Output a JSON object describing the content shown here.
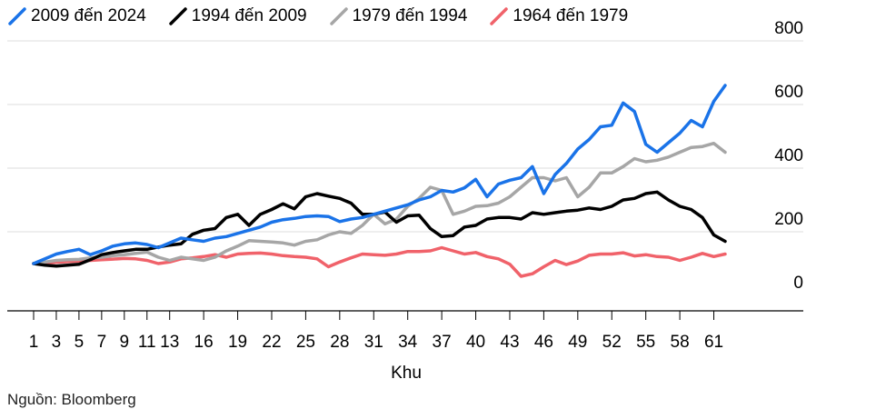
{
  "legend": [
    {
      "name": "2009 đến 2024",
      "color": "#1a73e8"
    },
    {
      "name": "1994 đến 2009",
      "color": "#000000"
    },
    {
      "name": "1979 đến 1994",
      "color": "#a6a6a6"
    },
    {
      "name": "1964 đến 1979",
      "color": "#f0626a"
    }
  ],
  "source": "Nguồn: Bloomberg",
  "chart_data": {
    "type": "line",
    "title": "",
    "xlabel": "Khu",
    "ylabel": "",
    "xlim": [
      1,
      62
    ],
    "ylim": [
      -50,
      800
    ],
    "yticks": [
      0,
      200,
      400,
      600,
      800
    ],
    "xticks": [
      1,
      3,
      5,
      7,
      9,
      11,
      13,
      16,
      19,
      22,
      25,
      28,
      31,
      34,
      37,
      40,
      43,
      46,
      49,
      52,
      55,
      58,
      61
    ],
    "grid": "horizontal",
    "y_axis_side": "right",
    "legend_position": "top-left",
    "series": [
      {
        "name": "1964 đến 1979",
        "color": "#f0626a",
        "values": [
          100,
          102,
          104,
          106,
          108,
          110,
          112,
          114,
          116,
          115,
          110,
          100,
          105,
          115,
          118,
          122,
          128,
          120,
          130,
          132,
          133,
          130,
          125,
          122,
          120,
          115,
          90,
          105,
          118,
          130,
          128,
          126,
          130,
          138,
          138,
          140,
          150,
          140,
          130,
          135,
          122,
          115,
          98,
          60,
          68,
          90,
          110,
          97,
          108,
          126,
          130,
          130,
          134,
          124,
          128,
          122,
          120,
          110,
          120,
          132,
          122,
          130
        ]
      },
      {
        "name": "1979 đến 1994",
        "color": "#a6a6a6",
        "values": [
          100,
          105,
          110,
          112,
          113,
          118,
          120,
          125,
          128,
          132,
          136,
          120,
          110,
          120,
          115,
          110,
          120,
          140,
          155,
          172,
          170,
          168,
          165,
          158,
          170,
          175,
          190,
          200,
          195,
          220,
          255,
          225,
          240,
          280,
          305,
          340,
          330,
          255,
          265,
          280,
          282,
          290,
          310,
          340,
          370,
          370,
          360,
          370,
          310,
          340,
          385,
          385,
          405,
          430,
          420,
          425,
          435,
          450,
          465,
          468,
          478,
          450
        ]
      },
      {
        "name": "1994 đến 2009",
        "color": "#000000",
        "values": [
          100,
          95,
          92,
          95,
          98,
          112,
          128,
          135,
          140,
          145,
          145,
          152,
          158,
          162,
          192,
          205,
          210,
          245,
          255,
          220,
          255,
          270,
          288,
          272,
          310,
          320,
          312,
          305,
          290,
          255,
          255,
          262,
          230,
          250,
          252,
          210,
          185,
          188,
          215,
          220,
          240,
          245,
          245,
          240,
          260,
          255,
          260,
          265,
          268,
          275,
          270,
          280,
          300,
          305,
          320,
          325,
          300,
          280,
          270,
          245,
          190,
          170
        ]
      },
      {
        "name": "2009 đến 2024",
        "color": "#1a73e8",
        "values": [
          100,
          115,
          130,
          138,
          145,
          128,
          140,
          155,
          162,
          165,
          160,
          150,
          165,
          180,
          175,
          170,
          180,
          185,
          195,
          205,
          215,
          230,
          238,
          242,
          248,
          250,
          248,
          232,
          240,
          245,
          255,
          265,
          275,
          285,
          300,
          310,
          330,
          325,
          338,
          365,
          310,
          350,
          362,
          370,
          405,
          320,
          380,
          415,
          460,
          490,
          530,
          535,
          605,
          578,
          475,
          450,
          480,
          510,
          550,
          530,
          610,
          660
        ]
      }
    ]
  }
}
